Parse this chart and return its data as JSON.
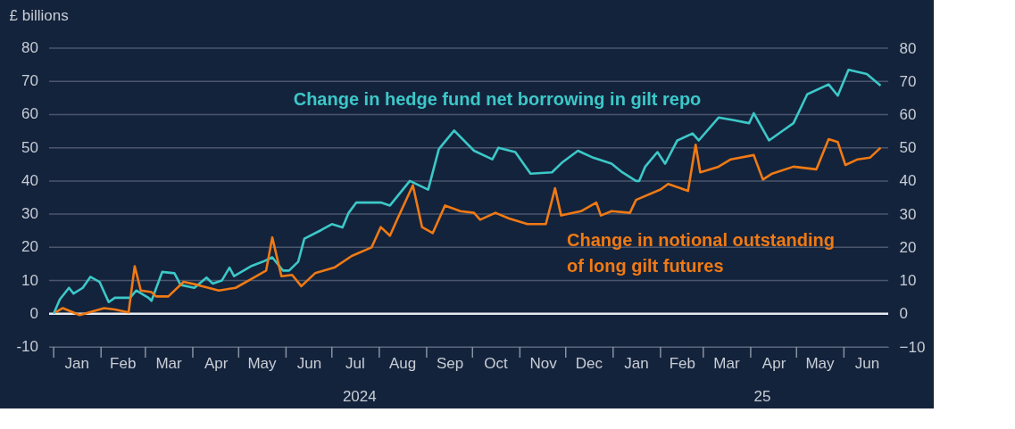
{
  "chart_data": {
    "type": "line",
    "ylabel": "£ billions",
    "xlim": [
      "2023-12-29",
      "2025-06-30"
    ],
    "xticks": [
      {
        "value": "2024-01-01",
        "label": null
      },
      {
        "value": "2024-01-16",
        "label": "Jan"
      },
      {
        "value": "2024-02-01",
        "label": null
      },
      {
        "value": "2024-02-15",
        "label": "Feb"
      },
      {
        "value": "2024-03-01",
        "label": null
      },
      {
        "value": "2024-03-16",
        "label": "Mar"
      },
      {
        "value": "2024-04-01",
        "label": null
      },
      {
        "value": "2024-04-16",
        "label": "Apr"
      },
      {
        "value": "2024-05-01",
        "label": null
      },
      {
        "value": "2024-05-16",
        "label": "May"
      },
      {
        "value": "2024-06-01",
        "label": null
      },
      {
        "value": "2024-06-16",
        "label": "Jun"
      },
      {
        "value": "2024-07-01",
        "label": null
      },
      {
        "value": "2024-07-16",
        "label": "Jul"
      },
      {
        "value": "2024-08-01",
        "label": null
      },
      {
        "value": "2024-08-16",
        "label": "Aug"
      },
      {
        "value": "2024-09-01",
        "label": null
      },
      {
        "value": "2024-09-16",
        "label": "Sep"
      },
      {
        "value": "2024-10-01",
        "label": null
      },
      {
        "value": "2024-10-16",
        "label": "Oct"
      },
      {
        "value": "2024-11-01",
        "label": null
      },
      {
        "value": "2024-11-16",
        "label": "Nov"
      },
      {
        "value": "2024-12-01",
        "label": null
      },
      {
        "value": "2024-12-16",
        "label": "Dec"
      },
      {
        "value": "2025-01-01",
        "label": null
      },
      {
        "value": "2025-01-16",
        "label": "Jan"
      },
      {
        "value": "2025-02-01",
        "label": null
      },
      {
        "value": "2025-02-15",
        "label": "Feb"
      },
      {
        "value": "2025-03-01",
        "label": null
      },
      {
        "value": "2025-03-16",
        "label": "Mar"
      },
      {
        "value": "2025-04-01",
        "label": null
      },
      {
        "value": "2025-04-16",
        "label": "Apr"
      },
      {
        "value": "2025-05-01",
        "label": null
      },
      {
        "value": "2025-05-16",
        "label": "May"
      },
      {
        "value": "2025-06-01",
        "label": null
      },
      {
        "value": "2025-06-16",
        "label": "Jun"
      }
    ],
    "ylim": [
      -10,
      80
    ],
    "yticks": [
      -10,
      0,
      10,
      20,
      30,
      40,
      50,
      60,
      70,
      80
    ],
    "y2lim": [
      -10,
      80
    ],
    "y2ticks": [
      -10,
      0,
      10,
      20,
      30,
      40,
      50,
      60,
      70,
      80
    ],
    "grid": "y",
    "legend": false,
    "ref_lines": [
      {
        "axis": "y",
        "value": 0,
        "label": null,
        "color": "#e8ecf2"
      }
    ],
    "annotations": [
      "2024",
      "25"
    ],
    "series": [
      {
        "name": "Change in hedge fund net borrowing in gilt repo",
        "color": "#3cc8c8",
        "x": [
          "2024-01-01",
          "2024-01-05",
          "2024-01-11",
          "2024-01-14",
          "2024-01-20",
          "2024-01-25",
          "2024-01-31",
          "2024-02-06",
          "2024-02-10",
          "2024-02-20",
          "2024-02-24",
          "2024-03-03",
          "2024-03-05",
          "2024-03-12",
          "2024-03-20",
          "2024-03-24",
          "2024-04-02",
          "2024-04-10",
          "2024-04-14",
          "2024-04-20",
          "2024-04-25",
          "2024-04-28",
          "2024-05-09",
          "2024-05-17",
          "2024-05-23",
          "2024-05-30",
          "2024-06-03",
          "2024-06-09",
          "2024-06-13",
          "2024-06-24",
          "2024-07-01",
          "2024-07-08",
          "2024-07-12",
          "2024-07-17",
          "2024-08-02",
          "2024-08-08",
          "2024-08-21",
          "2024-09-02",
          "2024-09-09",
          "2024-09-19",
          "2024-10-02",
          "2024-10-14",
          "2024-10-18",
          "2024-10-29",
          "2024-11-08",
          "2024-11-22",
          "2024-11-29",
          "2024-12-09",
          "2024-12-19",
          "2024-12-31",
          "2025-01-07",
          "2025-01-16",
          "2025-01-18",
          "2025-01-22",
          "2025-01-30",
          "2025-02-04",
          "2025-02-12",
          "2025-02-22",
          "2025-02-26",
          "2025-03-11",
          "2025-03-21",
          "2025-03-31",
          "2025-04-03",
          "2025-04-13",
          "2025-04-21",
          "2025-04-29",
          "2025-05-08",
          "2025-05-22",
          "2025-05-28",
          "2025-06-04",
          "2025-06-16",
          "2025-06-25"
        ],
        "values": [
          0,
          4.3,
          7.8,
          6.1,
          7.8,
          11.1,
          9.6,
          3.5,
          4.8,
          4.8,
          7,
          4.8,
          3.9,
          12.6,
          12.2,
          8.7,
          7.8,
          10.9,
          9.1,
          10,
          13.9,
          11.3,
          14.3,
          15.7,
          17,
          13,
          13,
          15.7,
          22.6,
          25.2,
          27,
          26,
          30.4,
          33.5,
          33.5,
          32.6,
          40,
          37.4,
          49.6,
          55.2,
          49.1,
          46.5,
          50,
          48.7,
          42.2,
          42.6,
          45.7,
          49.1,
          47,
          45.2,
          42.6,
          40,
          40,
          44.3,
          48.7,
          45.2,
          52.2,
          54.3,
          52.2,
          59.1,
          58.3,
          57.4,
          60.4,
          52.2,
          54.8,
          57.4,
          66.1,
          69.1,
          65.7,
          73.5,
          72.2,
          68.7
        ]
      },
      {
        "name": "Change in notional outstanding\nof long gilt futures",
        "color": "#f07a14",
        "x": [
          "2024-01-02",
          "2024-01-07",
          "2024-01-18",
          "2024-02-03",
          "2024-02-10",
          "2024-02-19",
          "2024-02-23",
          "2024-02-27",
          "2024-03-05",
          "2024-03-08",
          "2024-03-16",
          "2024-03-26",
          "2024-04-04",
          "2024-04-18",
          "2024-04-29",
          "2024-05-09",
          "2024-05-19",
          "2024-05-23",
          "2024-05-29",
          "2024-06-05",
          "2024-06-11",
          "2024-06-20",
          "2024-07-03",
          "2024-07-14",
          "2024-07-27",
          "2024-08-02",
          "2024-08-08",
          "2024-08-13",
          "2024-08-23",
          "2024-08-29",
          "2024-09-05",
          "2024-09-13",
          "2024-09-23",
          "2024-10-02",
          "2024-10-06",
          "2024-10-16",
          "2024-10-25",
          "2024-11-06",
          "2024-11-18",
          "2024-11-24",
          "2024-11-28",
          "2024-12-11",
          "2024-12-21",
          "2024-12-24",
          "2024-12-31",
          "2025-01-12",
          "2025-01-16",
          "2025-02-01",
          "2025-02-06",
          "2025-02-19",
          "2025-02-24",
          "2025-02-27",
          "2025-03-11",
          "2025-03-19",
          "2025-04-03",
          "2025-04-09",
          "2025-04-15",
          "2025-04-29",
          "2025-05-14",
          "2025-05-22",
          "2025-05-28",
          "2025-06-02",
          "2025-06-10",
          "2025-06-18",
          "2025-06-25"
        ],
        "values": [
          0.4,
          1.7,
          -0.4,
          1.7,
          1.3,
          0.4,
          14.3,
          7,
          6.5,
          5.2,
          5.2,
          9.6,
          8.7,
          7,
          7.8,
          10.4,
          13,
          23,
          11.3,
          11.7,
          8.3,
          12.2,
          14,
          17.4,
          20,
          26.1,
          23.5,
          28.7,
          38.7,
          26.1,
          24.3,
          32.6,
          30.9,
          30.4,
          28.3,
          30.4,
          28.7,
          27,
          27,
          37.8,
          29.6,
          30.9,
          33.5,
          29.6,
          30.9,
          30.4,
          34.3,
          37.4,
          39.1,
          37,
          50.9,
          42.6,
          44.3,
          46.5,
          47.8,
          40.4,
          42.2,
          44.3,
          43.5,
          52.6,
          51.7,
          44.8,
          46.5,
          47,
          50
        ]
      }
    ]
  }
}
